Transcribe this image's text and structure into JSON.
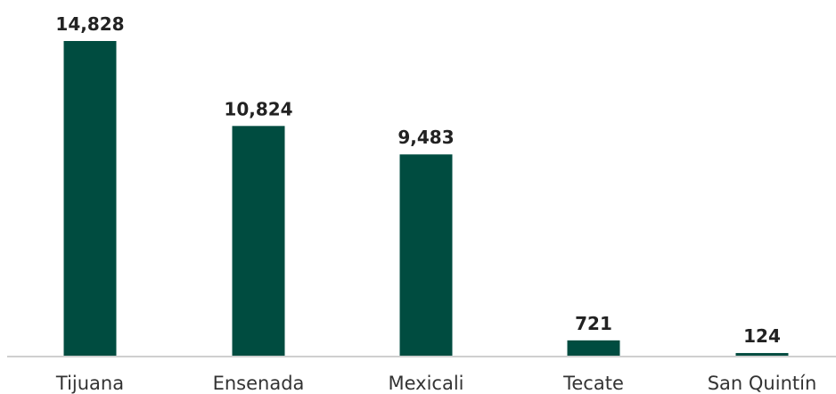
{
  "chart_data": {
    "type": "bar",
    "categories": [
      "Tijuana",
      "Ensenada",
      "Mexicali",
      "Tecate",
      "San Quintín"
    ],
    "values": [
      14828,
      10824,
      9483,
      721,
      124
    ],
    "value_labels": [
      "14,828",
      "10,824",
      "9,483",
      "721",
      "124"
    ],
    "title": "",
    "xlabel": "",
    "ylabel": "",
    "ylim": [
      0,
      14828
    ],
    "grid": false,
    "legend": "none",
    "bar_color": "#004C40",
    "axis_color": "#bfbfbf"
  }
}
